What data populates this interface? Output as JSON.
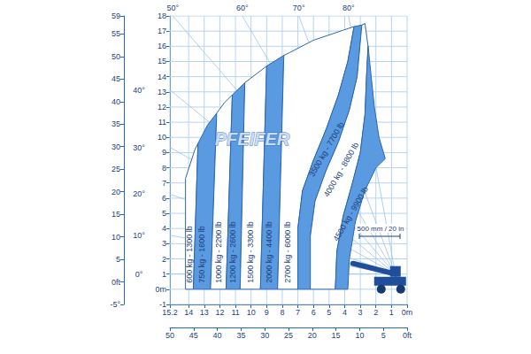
{
  "chart_data": {
    "type": "area",
    "grid": true,
    "xlim": [
      15.2,
      0
    ],
    "xticks": [
      15.2,
      14,
      13,
      12,
      11,
      10,
      9,
      8,
      7,
      6,
      5,
      4,
      3,
      2,
      1,
      {
        "value": 0,
        "label": "0m"
      }
    ],
    "ylim": [
      -1,
      18
    ],
    "yticks": [
      -1,
      {
        "value": 0,
        "label": "0m"
      },
      1,
      2,
      3,
      4,
      5,
      6,
      7,
      8,
      9,
      10,
      11,
      12,
      13,
      14,
      15,
      16,
      17,
      18
    ],
    "x2lim": [
      50,
      0
    ],
    "x2ticks": [
      50,
      45,
      40,
      35,
      30,
      25,
      20,
      15,
      10,
      5,
      {
        "value": 0,
        "label": "0ft"
      }
    ],
    "y2lim": [
      -5,
      59
    ],
    "y2ticks": [
      {
        "value": -5,
        "label": "-5°"
      },
      {
        "value": 0,
        "label": "0ft"
      },
      5,
      10,
      15,
      20,
      25,
      30,
      35,
      40,
      45,
      50,
      55,
      59
    ],
    "angle_origin": [
      0.75,
      1.0
    ],
    "angles": [
      {
        "value": 0,
        "label": "0°"
      },
      {
        "value": 10,
        "label": "10°"
      },
      {
        "value": 20,
        "label": "20°"
      },
      {
        "value": 30,
        "label": "30°"
      },
      {
        "value": 40,
        "label": "40°"
      },
      {
        "value": 50,
        "label": "50°"
      },
      {
        "value": 60,
        "label": "60°"
      },
      {
        "value": 70,
        "label": "70°"
      },
      {
        "value": 80,
        "label": "80°"
      }
    ],
    "annotations": [
      "500 mm / 20 in"
    ],
    "watermark": "PFEIFER",
    "series": [
      {
        "name": "600 kg - 1300 lb",
        "color": "#ffffff",
        "values": [
          [
            14.2,
            0
          ],
          [
            14.2,
            7.3
          ],
          [
            13.6,
            9.2
          ],
          [
            13.4,
            9.6
          ],
          [
            13.7,
            0
          ]
        ]
      },
      {
        "name": "750 kg - 1600 lb",
        "color": "#5a9ae0",
        "values": [
          [
            13.7,
            0
          ],
          [
            13.4,
            9.6
          ],
          [
            12.8,
            10.8
          ],
          [
            12.2,
            11.6
          ],
          [
            12.6,
            0
          ]
        ]
      },
      {
        "name": "1000 kg - 2200 lb",
        "color": "#ffffff",
        "values": [
          [
            12.6,
            0
          ],
          [
            12.2,
            11.6
          ],
          [
            11.7,
            12.3
          ],
          [
            11.2,
            12.8
          ],
          [
            11.6,
            0
          ]
        ]
      },
      {
        "name": "1200 kg - 2600 lb",
        "color": "#5a9ae0",
        "values": [
          [
            11.6,
            0
          ],
          [
            11.2,
            12.8
          ],
          [
            10.4,
            13.6
          ],
          [
            10.7,
            0
          ]
        ]
      },
      {
        "name": "1500 kg - 3300 lb",
        "color": "#ffffff",
        "values": [
          [
            10.7,
            0
          ],
          [
            10.4,
            13.6
          ],
          [
            9.0,
            14.7
          ],
          [
            9.4,
            0
          ]
        ]
      },
      {
        "name": "2000 kg - 4400 lb",
        "color": "#5a9ae0",
        "values": [
          [
            9.4,
            0
          ],
          [
            9.0,
            14.7
          ],
          [
            7.9,
            15.4
          ],
          [
            8.3,
            0
          ]
        ]
      },
      {
        "name": "2700 kg - 6000 lb",
        "color": "#ffffff",
        "values": [
          [
            8.3,
            0
          ],
          [
            7.9,
            15.4
          ],
          [
            7.5,
            15.6
          ],
          [
            6.0,
            16.4
          ],
          [
            3.4,
            17.3
          ],
          [
            3.8,
            15
          ],
          [
            4.4,
            12.8
          ],
          [
            5.2,
            10.5
          ],
          [
            6.0,
            8.5
          ],
          [
            6.7,
            6.5
          ],
          [
            7.0,
            4
          ],
          [
            7.0,
            0
          ]
        ]
      },
      {
        "name": "3500 kg - 7700 lb",
        "color": "#5a9ae0",
        "values": [
          [
            7.0,
            0
          ],
          [
            7.0,
            4
          ],
          [
            6.7,
            6.5
          ],
          [
            6.0,
            8.5
          ],
          [
            5.2,
            10.5
          ],
          [
            4.4,
            12.8
          ],
          [
            3.8,
            15
          ],
          [
            3.4,
            17.3
          ],
          [
            2.9,
            17.4
          ],
          [
            3.2,
            14
          ],
          [
            3.7,
            11.8
          ],
          [
            4.4,
            9.7
          ],
          [
            5.2,
            7.8
          ],
          [
            5.9,
            5.8
          ],
          [
            6.2,
            3.5
          ],
          [
            6.2,
            0
          ]
        ]
      },
      {
        "name": "4000 kg - 8800 lb",
        "color": "#ffffff",
        "values": [
          [
            6.2,
            0
          ],
          [
            6.2,
            3.5
          ],
          [
            5.9,
            5.8
          ],
          [
            5.2,
            7.8
          ],
          [
            4.4,
            9.7
          ],
          [
            3.7,
            11.8
          ],
          [
            3.2,
            14
          ],
          [
            2.9,
            17.4
          ],
          [
            2.7,
            17.5
          ],
          [
            2.5,
            16
          ],
          [
            2.6,
            14
          ],
          [
            2.7,
            11.5
          ],
          [
            3.0,
            9
          ],
          [
            3.5,
            7
          ],
          [
            4.1,
            4.8
          ],
          [
            4.5,
            2.5
          ],
          [
            4.6,
            0
          ]
        ]
      },
      {
        "name": "4500 kg - 9900 lb",
        "color": "#5a9ae0",
        "values": [
          [
            4.6,
            0
          ],
          [
            4.5,
            2.5
          ],
          [
            4.1,
            4.8
          ],
          [
            3.5,
            7
          ],
          [
            3.0,
            9
          ],
          [
            2.7,
            11.5
          ],
          [
            2.6,
            14
          ],
          [
            2.5,
            16
          ],
          [
            2.3,
            14
          ],
          [
            2.1,
            12
          ],
          [
            1.8,
            10
          ],
          [
            1.4,
            8.6
          ],
          [
            2.0,
            8
          ],
          [
            2.7,
            6.5
          ],
          [
            3.3,
            4.5
          ],
          [
            3.7,
            2
          ],
          [
            3.8,
            0
          ]
        ]
      }
    ]
  }
}
